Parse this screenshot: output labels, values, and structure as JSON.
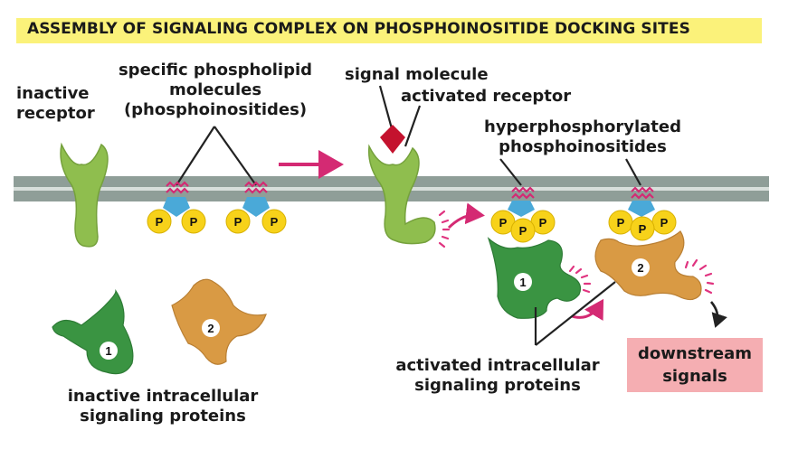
{
  "title": "ASSEMBLY OF SIGNALING COMPLEX ON PHOSPHOINOSITIDE DOCKING SITES",
  "labels": {
    "inactive_receptor": [
      "inactive",
      "receptor"
    ],
    "phospholipids": [
      "specific phospholipid",
      "molecules",
      "(phosphoinositides)"
    ],
    "signal_molecule": "signal molecule",
    "activated_receptor": "activated receptor",
    "hyperphosphorylated": [
      "hyperphosphorylated",
      "phosphoinositides"
    ],
    "inactive_proteins": [
      "inactive intracellular",
      "signaling proteins"
    ],
    "activated_proteins": [
      "activated intracellular",
      "signaling proteins"
    ],
    "downstream": [
      "downstream",
      "signals"
    ]
  },
  "glyphs": {
    "phosphate": "P",
    "protein_1": "1",
    "protein_2": "2"
  },
  "colors": {
    "title_bg": "#fbf27a",
    "membrane": "#8f9e98",
    "receptor": "#8fbe4e",
    "protein_1": "#3a9442",
    "protein_2": "#d99a44",
    "phosphate": "#f7d21a",
    "inositol": "#4aa9d8",
    "signal": "#c4122e",
    "arrow": "#d42a73",
    "activation_marks": "#e0337f",
    "downstream_box": "#f5aeb2"
  }
}
